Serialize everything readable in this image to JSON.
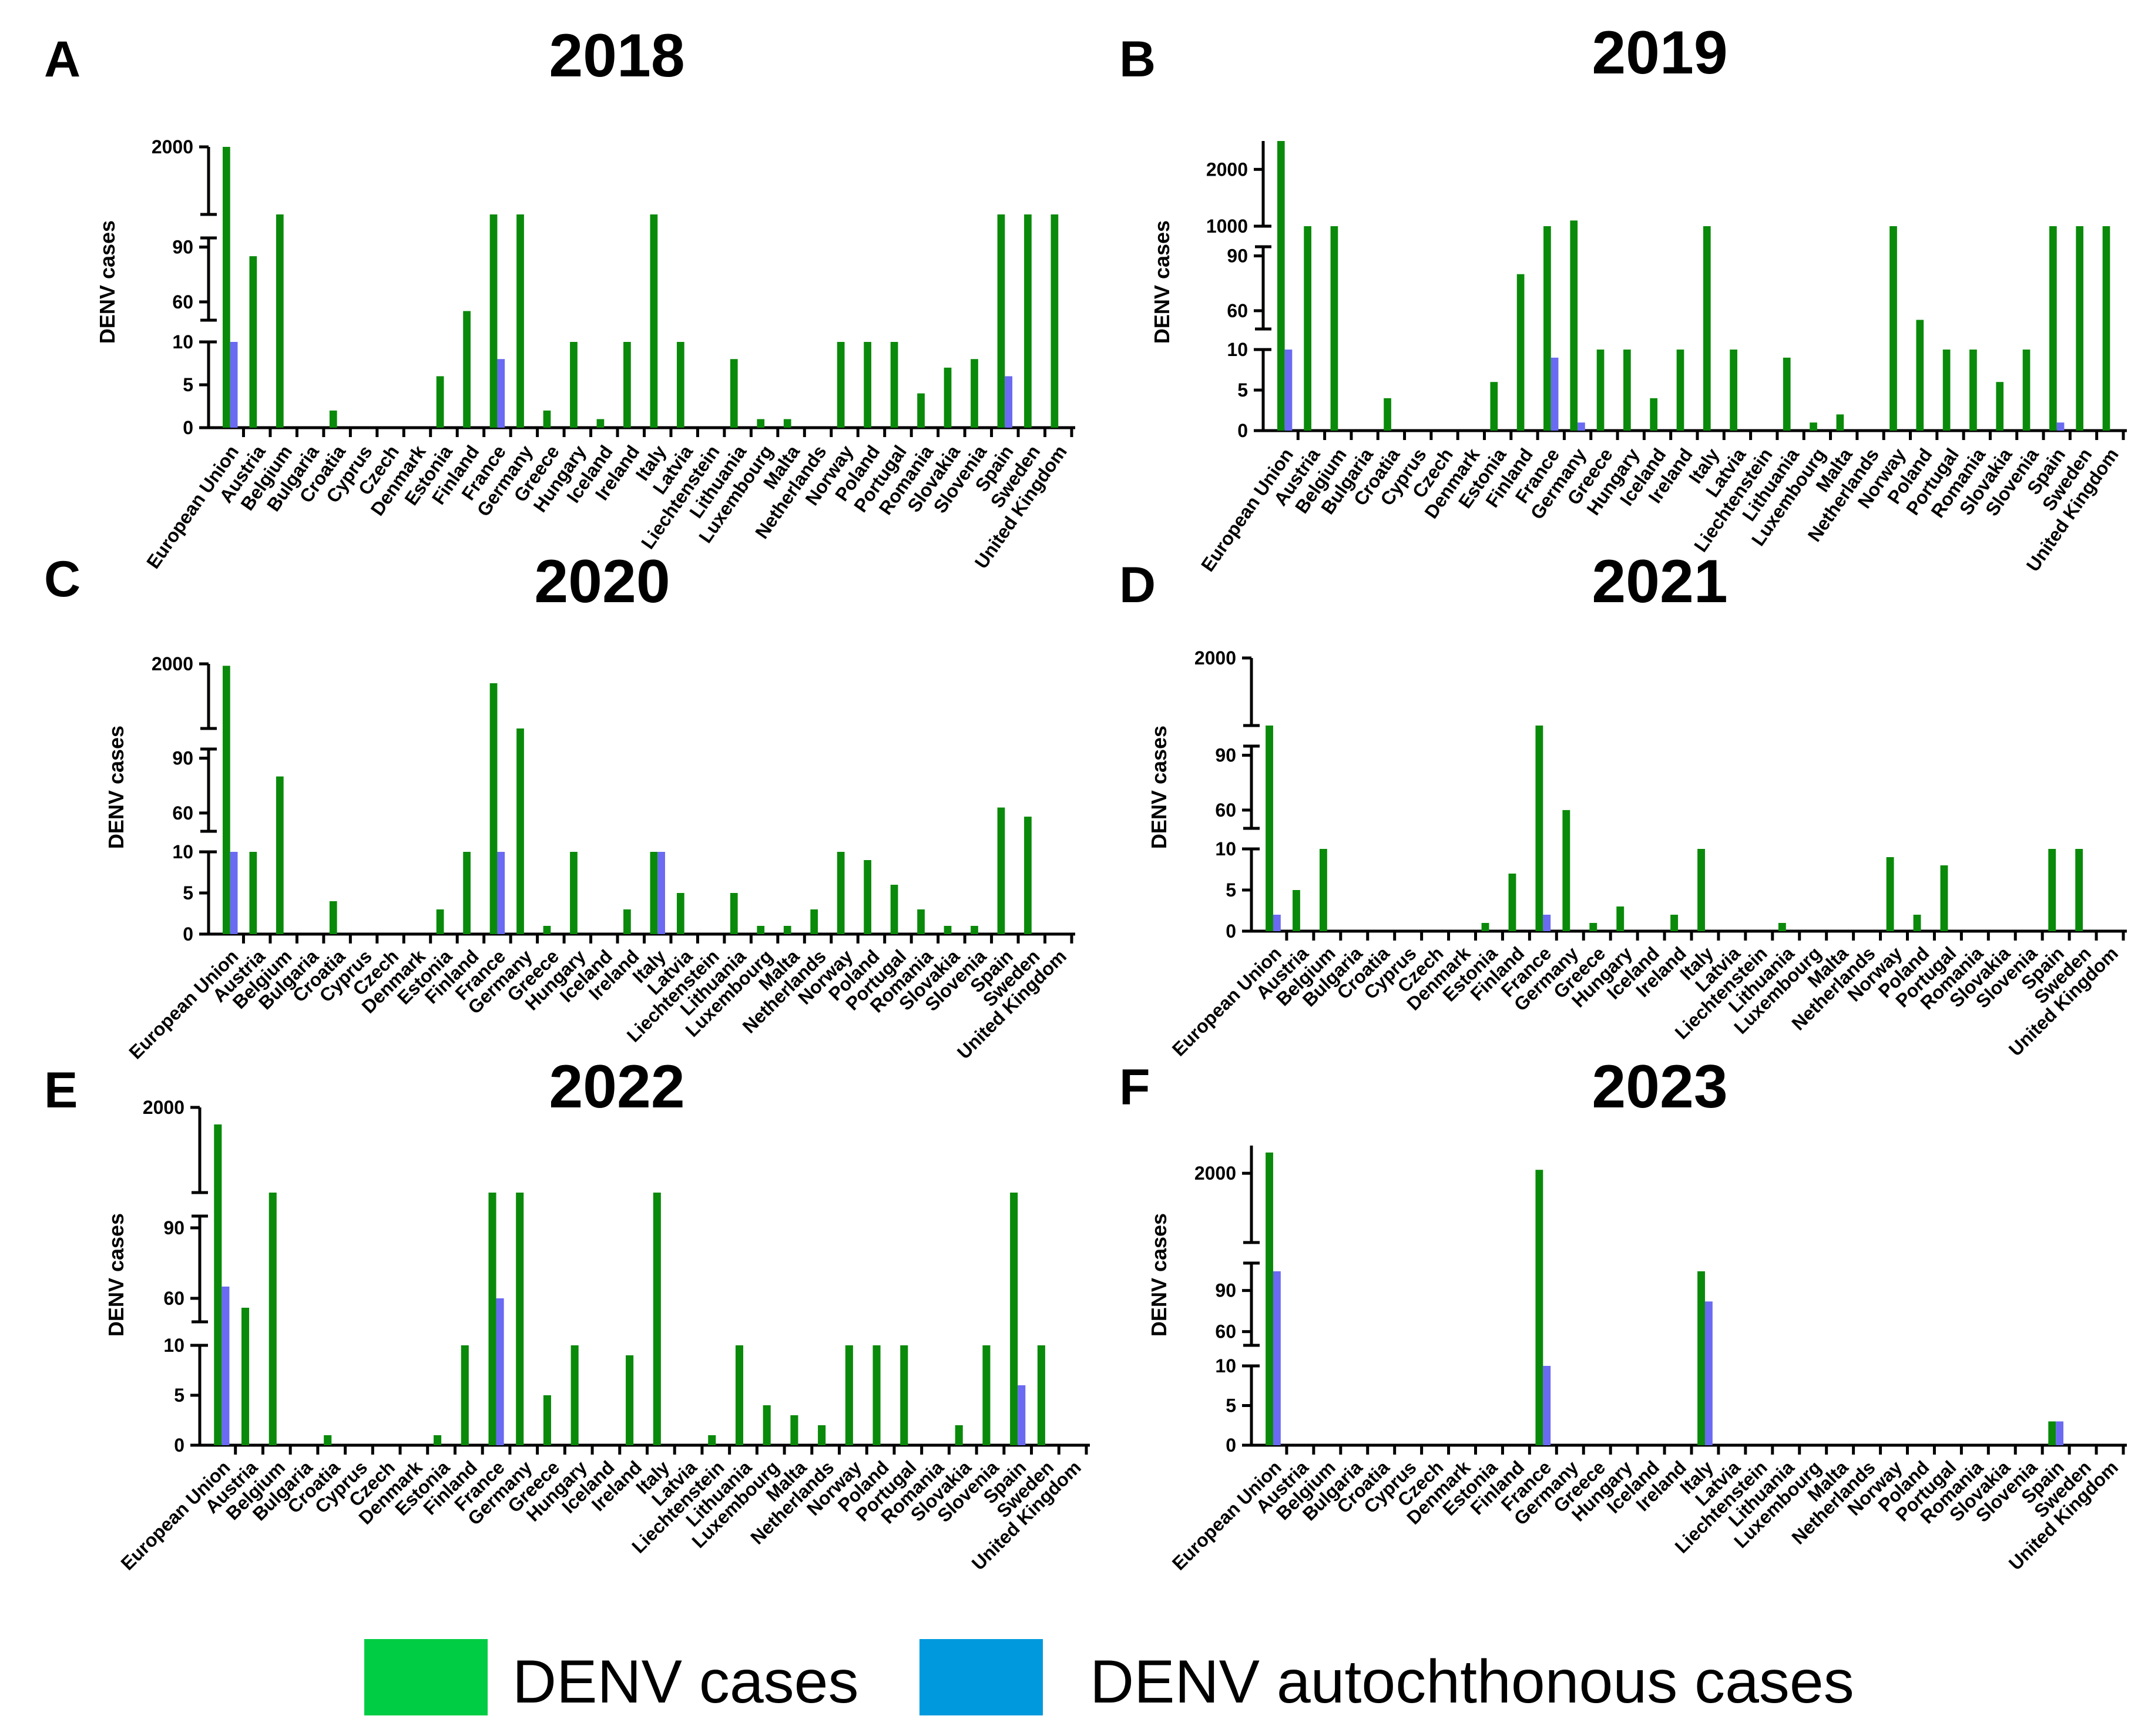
{
  "colors": {
    "denv_bar": "#0a8a0a",
    "auto_bar": "#6a6af2",
    "legend_denv": "#00cc44",
    "legend_auto": "#0099dd"
  },
  "legend": {
    "denv_label": "DENV cases",
    "auto_label": "DENV autochthonous cases"
  },
  "chart_data": [
    {
      "type": "bar",
      "panel": "A",
      "title": "2018",
      "ylabel": "DENV cases",
      "yaxis_segments": [
        [
          0,
          10
        ],
        [
          50,
          95
        ],
        [
          1000,
          2000
        ]
      ],
      "ytick_labels": [
        "0",
        "5",
        "10",
        "60",
        "90",
        "2000"
      ],
      "categories": [
        "European Union",
        "Austria",
        "Belgium",
        "Bulgaria",
        "Croatia",
        "Cyprus",
        "Czech",
        "Denmark",
        "Estonia",
        "Finland",
        "France",
        "Germany",
        "Greece",
        "Hungary",
        "Iceland",
        "Ireland",
        "Italy",
        "Latvia",
        "Liechtenstein",
        "Lithuania",
        "Luxembourg",
        "Malta",
        "Netherlands",
        "Norway",
        "Poland",
        "Portugal",
        "Romania",
        "Slovakia",
        "Slovenia",
        "Spain",
        "Sweden",
        "United Kingdom"
      ],
      "series": [
        {
          "name": "DENV cases",
          "values": [
            2150,
            85,
            1000,
            0,
            2,
            0,
            0,
            0,
            6,
            55,
            1000,
            1000,
            2,
            12,
            1,
            12,
            1000,
            12,
            0,
            8,
            1,
            1,
            0,
            12,
            12,
            12,
            4,
            7,
            8,
            1000,
            1000,
            1000
          ]
        },
        {
          "name": "DENV autochthonous cases",
          "values": [
            12,
            0,
            0,
            0,
            0,
            0,
            0,
            0,
            0,
            0,
            8,
            0,
            0,
            0,
            0,
            0,
            0,
            0,
            0,
            0,
            0,
            0,
            0,
            0,
            0,
            0,
            0,
            0,
            0,
            6,
            0,
            0
          ]
        }
      ]
    },
    {
      "type": "bar",
      "panel": "B",
      "title": "2019",
      "ylabel": "DENV cases",
      "yaxis_segments": [
        [
          0,
          10
        ],
        [
          50,
          95
        ],
        [
          1000,
          2500
        ]
      ],
      "ytick_labels": [
        "0",
        "5",
        "10",
        "60",
        "90",
        "1000",
        "2000"
      ],
      "categories": [
        "European Union",
        "Austria",
        "Belgium",
        "Bulgaria",
        "Croatia",
        "Cyprus",
        "Czech",
        "Denmark",
        "Estonia",
        "Finland",
        "France",
        "Germany",
        "Greece",
        "Hungary",
        "Iceland",
        "Ireland",
        "Italy",
        "Latvia",
        "Liechtenstein",
        "Lithuania",
        "Luxembourg",
        "Malta",
        "Netherlands",
        "Norway",
        "Poland",
        "Portugal",
        "Romania",
        "Slovakia",
        "Slovenia",
        "Spain",
        "Sweden",
        "United Kingdom"
      ],
      "series": [
        {
          "name": "DENV cases",
          "values": [
            2500,
            1000,
            1000,
            0,
            4,
            0,
            0,
            0,
            6,
            80,
            1000,
            1100,
            10,
            12,
            4,
            12,
            1000,
            12,
            0,
            9,
            1,
            2,
            0,
            1000,
            55,
            12,
            12,
            6,
            12,
            1000,
            1000,
            1000
          ]
        },
        {
          "name": "DENV autochthonous cases",
          "values": [
            12,
            0,
            0,
            0,
            0,
            0,
            0,
            0,
            0,
            0,
            9,
            1,
            0,
            0,
            0,
            0,
            0,
            0,
            0,
            0,
            0,
            0,
            0,
            0,
            0,
            0,
            0,
            0,
            0,
            1,
            0,
            0
          ]
        }
      ]
    },
    {
      "type": "bar",
      "panel": "C",
      "title": "2020",
      "ylabel": "DENV cases",
      "yaxis_segments": [
        [
          0,
          10
        ],
        [
          50,
          95
        ],
        [
          1000,
          2000
        ]
      ],
      "ytick_labels": [
        "0",
        "5",
        "10",
        "60",
        "90",
        "2000"
      ],
      "categories": [
        "European Union",
        "Austria",
        "Belgium",
        "Bulgaria",
        "Croatia",
        "Cyprus",
        "Czech",
        "Denmark",
        "Estonia",
        "Finland",
        "France",
        "Germany",
        "Greece",
        "Hungary",
        "Iceland",
        "Ireland",
        "Italy",
        "Latvia",
        "Liechtenstein",
        "Lithuania",
        "Luxembourg",
        "Malta",
        "Netherlands",
        "Norway",
        "Poland",
        "Portugal",
        "Romania",
        "Slovakia",
        "Slovenia",
        "Spain",
        "Sweden",
        "United Kingdom"
      ],
      "series": [
        {
          "name": "DENV cases",
          "values": [
            1970,
            12,
            80,
            0,
            4,
            0,
            0,
            0,
            3,
            12,
            1700,
            1000,
            1,
            12,
            0,
            3,
            12,
            5,
            0,
            5,
            1,
            1,
            3,
            12,
            9,
            6,
            3,
            1,
            1,
            63,
            58,
            0
          ]
        },
        {
          "name": "DENV autochthonous cases",
          "values": [
            12,
            0,
            0,
            0,
            0,
            0,
            0,
            0,
            0,
            0,
            12,
            0,
            0,
            0,
            0,
            0,
            10,
            0,
            0,
            0,
            0,
            0,
            0,
            0,
            0,
            0,
            0,
            0,
            0,
            0,
            0,
            0
          ]
        }
      ]
    },
    {
      "type": "bar",
      "panel": "D",
      "title": "2021",
      "ylabel": "DENV cases",
      "yaxis_segments": [
        [
          0,
          10
        ],
        [
          50,
          95
        ],
        [
          1000,
          2000
        ]
      ],
      "ytick_labels": [
        "0",
        "5",
        "10",
        "60",
        "90",
        "2000"
      ],
      "categories": [
        "European Union",
        "Austria",
        "Belgium",
        "Bulgaria",
        "Croatia",
        "Cyprus",
        "Czech",
        "Denmark",
        "Estonia",
        "Finland",
        "France",
        "Germany",
        "Greece",
        "Hungary",
        "Iceland",
        "Ireland",
        "Italy",
        "Latvia",
        "Liechtenstein",
        "Lithuania",
        "Luxembourg",
        "Malta",
        "Netherlands",
        "Norway",
        "Poland",
        "Portugal",
        "Romania",
        "Slovakia",
        "Slovenia",
        "Spain",
        "Sweden",
        "United Kingdom"
      ],
      "series": [
        {
          "name": "DENV cases",
          "values": [
            1000,
            5,
            12,
            0,
            0,
            0,
            0,
            0,
            1,
            7,
            1000,
            60,
            1,
            3,
            0,
            2,
            12,
            0,
            0,
            1,
            0,
            0,
            0,
            9,
            2,
            8,
            0,
            0,
            0,
            12,
            12,
            0
          ]
        },
        {
          "name": "DENV autochthonous cases",
          "values": [
            2,
            0,
            0,
            0,
            0,
            0,
            0,
            0,
            0,
            0,
            2,
            0,
            0,
            0,
            0,
            0,
            0,
            0,
            0,
            0,
            0,
            0,
            0,
            0,
            0,
            0,
            0,
            0,
            0,
            0,
            0,
            0
          ]
        }
      ]
    },
    {
      "type": "bar",
      "panel": "E",
      "title": "2022",
      "ylabel": "DENV cases",
      "yaxis_segments": [
        [
          0,
          10
        ],
        [
          50,
          95
        ],
        [
          1000,
          2000
        ]
      ],
      "ytick_labels": [
        "0",
        "5",
        "10",
        "60",
        "90",
        "2000"
      ],
      "categories": [
        "European Union",
        "Austria",
        "Belgium",
        "Bulgaria",
        "Croatia",
        "Cyprus",
        "Czech",
        "Denmark",
        "Estonia",
        "Finland",
        "France",
        "Germany",
        "Greece",
        "Hungary",
        "Iceland",
        "Ireland",
        "Italy",
        "Latvia",
        "Liechtenstein",
        "Lithuania",
        "Luxembourg",
        "Malta",
        "Netherlands",
        "Norway",
        "Poland",
        "Portugal",
        "Romania",
        "Slovakia",
        "Slovenia",
        "Spain",
        "Sweden",
        "United Kingdom"
      ],
      "series": [
        {
          "name": "DENV cases",
          "values": [
            1800,
            56,
            1000,
            0,
            1,
            0,
            0,
            0,
            1,
            12,
            1000,
            1000,
            5,
            12,
            0,
            9,
            1000,
            0,
            1,
            12,
            4,
            3,
            2,
            12,
            12,
            12,
            0,
            2,
            12,
            1000,
            14,
            0
          ]
        },
        {
          "name": "DENV autochthonous cases",
          "values": [
            65,
            0,
            0,
            0,
            0,
            0,
            0,
            0,
            0,
            0,
            60,
            0,
            0,
            0,
            0,
            0,
            0,
            0,
            0,
            0,
            0,
            0,
            0,
            0,
            0,
            0,
            0,
            0,
            0,
            6,
            0,
            0
          ]
        }
      ]
    },
    {
      "type": "bar",
      "panel": "F",
      "title": "2023",
      "ylabel": "DENV cases",
      "yaxis_segments": [
        [
          0,
          10
        ],
        [
          50,
          110
        ],
        [
          1000,
          2400
        ]
      ],
      "ytick_labels": [
        "0",
        "5",
        "10",
        "60",
        "90",
        "2000"
      ],
      "categories": [
        "European Union",
        "Austria",
        "Belgium",
        "Bulgaria",
        "Croatia",
        "Cyprus",
        "Czech",
        "Denmark",
        "Estonia",
        "Finland",
        "France",
        "Germany",
        "Greece",
        "Hungary",
        "Iceland",
        "Ireland",
        "Italy",
        "Latvia",
        "Liechtenstein",
        "Lithuania",
        "Luxembourg",
        "Malta",
        "Netherlands",
        "Norway",
        "Poland",
        "Portugal",
        "Romania",
        "Slovakia",
        "Slovenia",
        "Spain",
        "Sweden",
        "United Kingdom"
      ],
      "series": [
        {
          "name": "DENV cases",
          "values": [
            2300,
            0,
            0,
            0,
            0,
            0,
            0,
            0,
            0,
            0,
            2050,
            0,
            0,
            0,
            0,
            0,
            104,
            0,
            0,
            0,
            0,
            0,
            0,
            0,
            0,
            0,
            0,
            0,
            0,
            3,
            0,
            0
          ]
        },
        {
          "name": "DENV autochthonous cases",
          "values": [
            104,
            0,
            0,
            0,
            0,
            0,
            0,
            0,
            0,
            0,
            12,
            0,
            0,
            0,
            0,
            0,
            82,
            0,
            0,
            0,
            0,
            0,
            0,
            0,
            0,
            0,
            0,
            0,
            0,
            3,
            0,
            0
          ]
        }
      ]
    }
  ]
}
